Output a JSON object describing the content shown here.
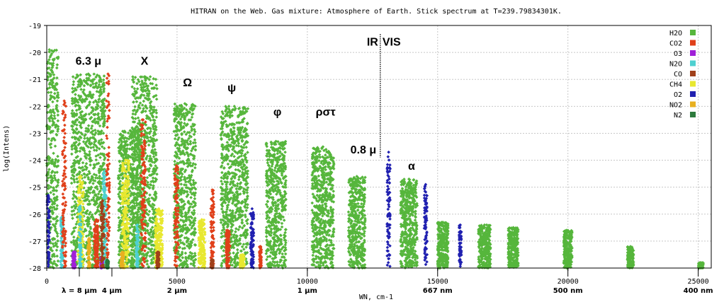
{
  "chart_data": {
    "type": "scatter",
    "title": "HITRAN on the Web. Gas mixture: Atmosphere of Earth. Stick spectrum at T=239.79834301K.",
    "xlabel": "WN, cm-1",
    "ylabel": "log(Intens)",
    "xlim": [
      0,
      25500
    ],
    "ylim": [
      -28,
      -19
    ],
    "grid": true,
    "legend_position": "top-right",
    "x_ticks": [
      0,
      5000,
      10000,
      15000,
      20000,
      25000
    ],
    "x_tick_labels": [
      "0",
      "5000",
      "10000",
      "15000",
      "20000",
      "25000"
    ],
    "y_ticks": [
      -28,
      -27,
      -26,
      -25,
      -24,
      -23,
      -22,
      -21,
      -20,
      -19
    ],
    "y_tick_labels": [
      "-28",
      "-27",
      "-26",
      "-25",
      "-24",
      "-23",
      "-22",
      "-21",
      "-20",
      "-19"
    ],
    "wavelength_ticks": [
      {
        "x": 1250,
        "label": "λ = 8 μm"
      },
      {
        "x": 2500,
        "label": "4 μm"
      },
      {
        "x": 5000,
        "label": "2 μm"
      },
      {
        "x": 10000,
        "label": "1 μm"
      },
      {
        "x": 15000,
        "label": "667 nm"
      },
      {
        "x": 20000,
        "label": "500 nm"
      },
      {
        "x": 25000,
        "label": "400 nm"
      }
    ],
    "ir_vis_boundary": {
      "x": 12800,
      "ir_label": "IR",
      "vis_label": "VIS",
      "ir_color": "#b03020",
      "vis_color": "#3030b0"
    },
    "band_labels": [
      {
        "x": 1600,
        "y": -20.45,
        "label": "6.3 μ"
      },
      {
        "x": 3750,
        "y": -20.45,
        "label": "X"
      },
      {
        "x": 5400,
        "y": -21.25,
        "label": "Ω"
      },
      {
        "x": 7100,
        "y": -21.45,
        "label": "ψ"
      },
      {
        "x": 8850,
        "y": -22.35,
        "label": "φ"
      },
      {
        "x": 10700,
        "y": -22.35,
        "label": "ρστ"
      },
      {
        "x": 12150,
        "y": -23.75,
        "label": "0.8 μ"
      },
      {
        "x": 14000,
        "y": -24.35,
        "label": "α"
      }
    ],
    "series": [
      {
        "name": "H2O",
        "color": "#56b63c",
        "bands": [
          {
            "c": 100,
            "w": 350,
            "peak": -19.9
          },
          {
            "c": 1595,
            "w": 650,
            "peak": -20.8
          },
          {
            "c": 3200,
            "w": 450,
            "peak": -22.9
          },
          {
            "c": 3750,
            "w": 480,
            "peak": -20.9
          },
          {
            "c": 5300,
            "w": 420,
            "peak": -21.9
          },
          {
            "c": 7200,
            "w": 520,
            "peak": -22.0
          },
          {
            "c": 8800,
            "w": 380,
            "peak": -23.3
          },
          {
            "c": 10600,
            "w": 420,
            "peak": -23.5
          },
          {
            "c": 11900,
            "w": 320,
            "peak": -24.6
          },
          {
            "c": 13900,
            "w": 320,
            "peak": -24.7
          },
          {
            "c": 15200,
            "w": 200,
            "peak": -26.3
          },
          {
            "c": 16800,
            "w": 230,
            "peak": -26.4
          },
          {
            "c": 17900,
            "w": 190,
            "peak": -26.5
          },
          {
            "c": 20000,
            "w": 160,
            "peak": -26.6
          },
          {
            "c": 22400,
            "w": 120,
            "peak": -27.2
          },
          {
            "c": 25100,
            "w": 90,
            "peak": -27.8
          }
        ]
      },
      {
        "name": "CO2",
        "color": "#e0401a",
        "bands": [
          {
            "c": 670,
            "w": 70,
            "peak": -21.8
          },
          {
            "c": 1900,
            "w": 80,
            "peak": -26.2
          },
          {
            "c": 2350,
            "w": 60,
            "peak": -20.8
          },
          {
            "c": 3700,
            "w": 90,
            "peak": -22.5
          },
          {
            "c": 4980,
            "w": 70,
            "peak": -24.2
          },
          {
            "c": 6350,
            "w": 60,
            "peak": -25.1
          },
          {
            "c": 6950,
            "w": 70,
            "peak": -26.6
          },
          {
            "c": 8200,
            "w": 40,
            "peak": -27.2
          }
        ]
      },
      {
        "name": "O3",
        "color": "#a020d8",
        "bands": [
          {
            "c": 1040,
            "w": 50,
            "peak": -27.4
          },
          {
            "c": 2110,
            "w": 40,
            "peak": -27.6
          }
        ]
      },
      {
        "name": "N2O",
        "color": "#4ed0d0",
        "bands": [
          {
            "c": 590,
            "w": 60,
            "peak": -26.1
          },
          {
            "c": 1285,
            "w": 50,
            "peak": -25.7
          },
          {
            "c": 2220,
            "w": 70,
            "peak": -24.4
          },
          {
            "c": 3480,
            "w": 50,
            "peak": -26.4
          }
        ]
      },
      {
        "name": "CO",
        "color": "#a0401a",
        "bands": [
          {
            "c": 2145,
            "w": 60,
            "peak": -25.5
          },
          {
            "c": 4260,
            "w": 50,
            "peak": -27.4
          },
          {
            "c": 6350,
            "w": 40,
            "peak": -27.7
          }
        ]
      },
      {
        "name": "CH4",
        "color": "#e8e830",
        "bands": [
          {
            "c": 1305,
            "w": 100,
            "peak": -24.6
          },
          {
            "c": 3020,
            "w": 140,
            "peak": -24.0
          },
          {
            "c": 4300,
            "w": 140,
            "peak": -25.8
          },
          {
            "c": 5950,
            "w": 120,
            "peak": -26.2
          },
          {
            "c": 7500,
            "w": 80,
            "peak": -27.5
          }
        ]
      },
      {
        "name": "O2",
        "color": "#2020b0",
        "bands": [
          {
            "c": 60,
            "w": 45,
            "peak": -25.3
          },
          {
            "c": 7880,
            "w": 60,
            "peak": -25.8
          },
          {
            "c": 13120,
            "w": 60,
            "peak": -23.7
          },
          {
            "c": 14540,
            "w": 55,
            "peak": -24.9
          },
          {
            "c": 15870,
            "w": 45,
            "peak": -26.4
          }
        ]
      },
      {
        "name": "NO2",
        "color": "#e8b020",
        "bands": [
          {
            "c": 1617,
            "w": 40,
            "peak": -26.9
          },
          {
            "c": 2900,
            "w": 50,
            "peak": -27.4
          }
        ]
      },
      {
        "name": "N2",
        "color": "#2c7a3c",
        "bands": [
          {
            "c": 2330,
            "w": 40,
            "peak": -27.7
          }
        ]
      }
    ]
  }
}
